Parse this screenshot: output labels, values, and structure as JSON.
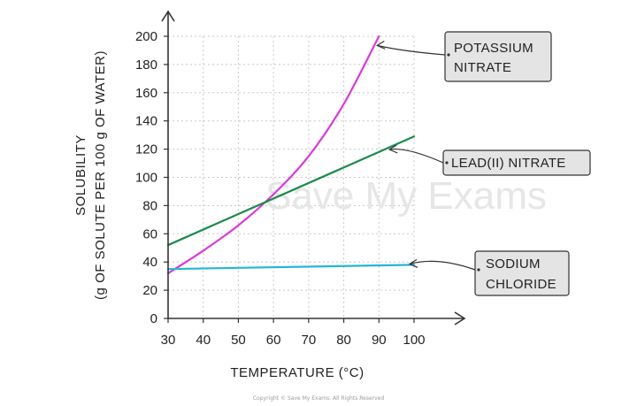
{
  "chart_data": {
    "type": "line",
    "xlabel": "TEMPERATURE (°C)",
    "ylabel_line1": "SOLUBILITY",
    "ylabel_line2": "(g OF SOLUTE PER 100 g OF WATER)",
    "xlim": [
      30,
      100
    ],
    "ylim": [
      0,
      200
    ],
    "x_ticks": [
      30,
      40,
      50,
      60,
      70,
      80,
      90,
      100
    ],
    "y_ticks": [
      0,
      20,
      40,
      60,
      80,
      100,
      120,
      140,
      160,
      180,
      200
    ],
    "grid": true,
    "series": [
      {
        "name": "POTASSIUM NITRATE",
        "label_lines": [
          "POTASSIUM",
          "NITRATE"
        ],
        "color": "#d93ad9",
        "x": [
          30,
          40,
          50,
          60,
          70,
          80,
          90
        ],
        "y": [
          32,
          48,
          66,
          88,
          115,
          152,
          200
        ]
      },
      {
        "name": "LEAD(II) NITRATE",
        "label_lines": [
          "LEAD(II)  NITRATE"
        ],
        "color": "#1a8a4a",
        "x": [
          30,
          100
        ],
        "y": [
          52,
          129
        ]
      },
      {
        "name": "SODIUM CHLORIDE",
        "label_lines": [
          "SODIUM",
          "CHLORIDE"
        ],
        "color": "#25b5d8",
        "x": [
          30,
          100
        ],
        "y": [
          35,
          38
        ]
      }
    ]
  },
  "watermark": "Save My Exams",
  "footer": "Copyright © Save My Exams. All Rights Reserved"
}
